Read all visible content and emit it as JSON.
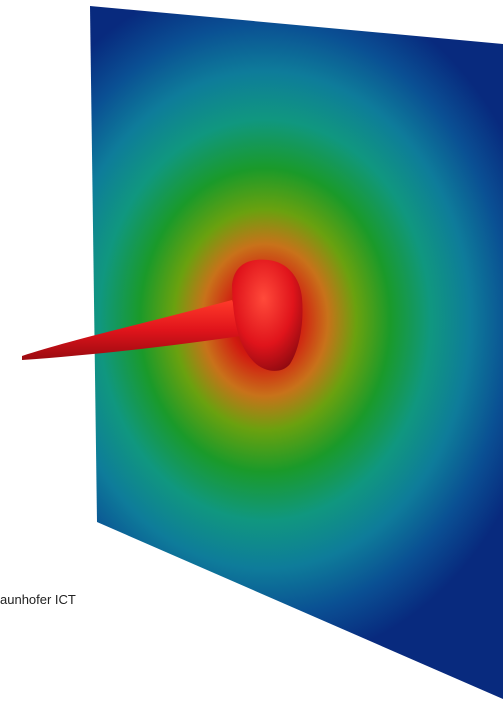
{
  "image": {
    "credit_text": "aunhofer ICT",
    "plate_colormap": [
      "#8b0000",
      "#d11a10",
      "#c8721a",
      "#6aa10f",
      "#1a9a2a",
      "#10977f",
      "#0e7c9a",
      "#0a4f93",
      "#082a7e"
    ],
    "spike_color": "#e0141b"
  }
}
